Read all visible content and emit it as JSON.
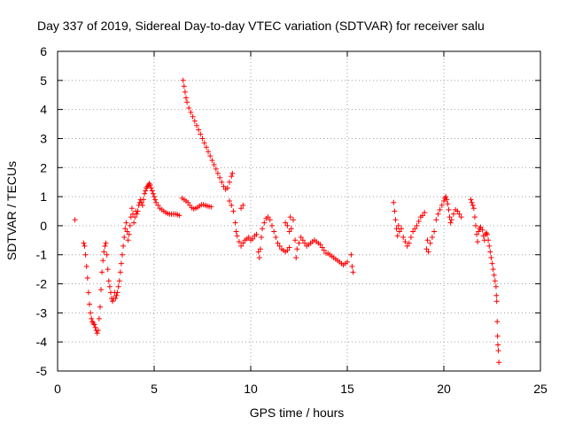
{
  "chart_data": {
    "type": "scatter",
    "title": "Day 337 of 2019, Sidereal Day-to-day VTEC variation (SDTVAR) for receiver salu",
    "xlabel": "GPS time / hours",
    "ylabel": "SDTVAR / TECUs",
    "xlim": [
      0,
      25
    ],
    "ylim": [
      -5,
      6
    ],
    "x_ticks": [
      0,
      5,
      10,
      15,
      20,
      25
    ],
    "y_ticks": [
      -5,
      -4,
      -3,
      -2,
      -1,
      0,
      1,
      2,
      3,
      4,
      5,
      6
    ],
    "x_tick_labels": [
      "0",
      "5",
      "10",
      "15",
      "20",
      "25"
    ],
    "y_tick_labels": [
      "-5",
      "-4",
      "-3",
      "-2",
      "-1",
      "0",
      "1",
      "2",
      "3",
      "4",
      "5",
      "6"
    ],
    "grid": true,
    "marker": "+",
    "marker_color": "#ff0000",
    "series": [
      {
        "name": "SDTVAR",
        "points": [
          [
            0.9,
            0.2
          ],
          [
            1.35,
            -0.6
          ],
          [
            1.4,
            -0.7
          ],
          [
            1.45,
            -1.0
          ],
          [
            1.5,
            -1.4
          ],
          [
            1.55,
            -1.8
          ],
          [
            1.6,
            -2.3
          ],
          [
            1.65,
            -2.7
          ],
          [
            1.7,
            -3.0
          ],
          [
            1.75,
            -3.2
          ],
          [
            1.8,
            -3.3
          ],
          [
            1.85,
            -3.35
          ],
          [
            1.9,
            -3.4
          ],
          [
            1.95,
            -3.5
          ],
          [
            2.0,
            -3.6
          ],
          [
            2.05,
            -3.7
          ],
          [
            2.1,
            -3.6
          ],
          [
            2.15,
            -3.2
          ],
          [
            2.2,
            -2.8
          ],
          [
            2.25,
            -2.2
          ],
          [
            2.3,
            -1.6
          ],
          [
            2.35,
            -1.2
          ],
          [
            2.4,
            -0.9
          ],
          [
            2.45,
            -0.7
          ],
          [
            2.5,
            -0.6
          ],
          [
            2.55,
            -1.0
          ],
          [
            2.6,
            -1.5
          ],
          [
            2.65,
            -1.9
          ],
          [
            2.7,
            -2.1
          ],
          [
            2.75,
            -2.3
          ],
          [
            2.8,
            -2.5
          ],
          [
            2.85,
            -2.6
          ],
          [
            2.9,
            -2.5
          ],
          [
            2.95,
            -2.3
          ],
          [
            3.0,
            -2.5
          ],
          [
            3.05,
            -2.4
          ],
          [
            3.1,
            -2.3
          ],
          [
            3.15,
            -2.1
          ],
          [
            3.2,
            -1.9
          ],
          [
            3.25,
            -1.6
          ],
          [
            3.3,
            -1.3
          ],
          [
            3.35,
            -1.0
          ],
          [
            3.4,
            -0.7
          ],
          [
            3.45,
            -0.4
          ],
          [
            3.5,
            -0.1
          ],
          [
            3.55,
            0.1
          ],
          [
            3.6,
            -0.2
          ],
          [
            3.65,
            -0.5
          ],
          [
            3.7,
            -0.3
          ],
          [
            3.75,
            0.0
          ],
          [
            3.8,
            0.3
          ],
          [
            3.85,
            0.6
          ],
          [
            3.9,
            0.4
          ],
          [
            3.95,
            0.1
          ],
          [
            4.0,
            0.3
          ],
          [
            4.05,
            0.5
          ],
          [
            4.1,
            0.4
          ],
          [
            4.15,
            0.5
          ],
          [
            4.2,
            0.7
          ],
          [
            4.25,
            0.8
          ],
          [
            4.3,
            0.9
          ],
          [
            4.35,
            0.8
          ],
          [
            4.4,
            0.7
          ],
          [
            4.45,
            0.9
          ],
          [
            4.5,
            1.1
          ],
          [
            4.55,
            1.2
          ],
          [
            4.6,
            1.3
          ],
          [
            4.65,
            1.35
          ],
          [
            4.7,
            1.4
          ],
          [
            4.75,
            1.45
          ],
          [
            4.8,
            1.4
          ],
          [
            4.85,
            1.3
          ],
          [
            4.9,
            1.2
          ],
          [
            4.95,
            1.1
          ],
          [
            5.0,
            1.0
          ],
          [
            5.05,
            0.9
          ],
          [
            5.1,
            0.8
          ],
          [
            5.2,
            0.7
          ],
          [
            5.3,
            0.6
          ],
          [
            5.4,
            0.55
          ],
          [
            5.5,
            0.5
          ],
          [
            5.6,
            0.45
          ],
          [
            5.7,
            0.42
          ],
          [
            5.8,
            0.4
          ],
          [
            5.9,
            0.4
          ],
          [
            6.0,
            0.4
          ],
          [
            6.1,
            0.4
          ],
          [
            6.2,
            0.38
          ],
          [
            6.3,
            0.35
          ],
          [
            6.45,
            0.95
          ],
          [
            6.55,
            0.9
          ],
          [
            6.65,
            0.85
          ],
          [
            6.75,
            0.8
          ],
          [
            6.85,
            0.7
          ],
          [
            6.95,
            0.62
          ],
          [
            7.05,
            0.58
          ],
          [
            7.15,
            0.6
          ],
          [
            7.25,
            0.63
          ],
          [
            7.35,
            0.68
          ],
          [
            7.45,
            0.72
          ],
          [
            7.55,
            0.72
          ],
          [
            7.65,
            0.7
          ],
          [
            7.75,
            0.68
          ],
          [
            7.85,
            0.66
          ],
          [
            7.95,
            0.65
          ],
          [
            6.5,
            5.0
          ],
          [
            6.55,
            4.8
          ],
          [
            6.6,
            4.6
          ],
          [
            6.65,
            4.4
          ],
          [
            6.7,
            4.25
          ],
          [
            6.8,
            4.05
          ],
          [
            6.9,
            3.9
          ],
          [
            7.0,
            3.75
          ],
          [
            7.1,
            3.6
          ],
          [
            7.2,
            3.45
          ],
          [
            7.3,
            3.3
          ],
          [
            7.4,
            3.15
          ],
          [
            7.5,
            3.0
          ],
          [
            7.6,
            2.85
          ],
          [
            7.7,
            2.7
          ],
          [
            7.8,
            2.55
          ],
          [
            7.9,
            2.4
          ],
          [
            8.0,
            2.25
          ],
          [
            8.1,
            2.1
          ],
          [
            8.2,
            1.95
          ],
          [
            8.3,
            1.8
          ],
          [
            8.4,
            1.65
          ],
          [
            8.5,
            1.5
          ],
          [
            8.6,
            1.35
          ],
          [
            8.7,
            1.25
          ],
          [
            8.8,
            1.3
          ],
          [
            8.9,
            1.5
          ],
          [
            9.0,
            1.7
          ],
          [
            9.05,
            1.8
          ],
          [
            8.9,
            0.85
          ],
          [
            9.0,
            0.7
          ],
          [
            9.1,
            0.5
          ],
          [
            9.2,
            0.1
          ],
          [
            9.25,
            -0.2
          ],
          [
            9.3,
            -0.35
          ],
          [
            9.4,
            -0.55
          ],
          [
            9.5,
            -0.7
          ],
          [
            9.6,
            -0.6
          ],
          [
            9.7,
            -0.5
          ],
          [
            9.8,
            -0.45
          ],
          [
            9.9,
            -0.4
          ],
          [
            10.0,
            -0.5
          ],
          [
            10.1,
            -0.45
          ],
          [
            10.2,
            -0.35
          ],
          [
            10.3,
            -0.3
          ],
          [
            9.5,
            0.6
          ],
          [
            9.6,
            0.7
          ],
          [
            10.4,
            -0.9
          ],
          [
            10.45,
            -1.1
          ],
          [
            10.5,
            -0.8
          ],
          [
            10.55,
            -0.4
          ],
          [
            10.6,
            -0.1
          ],
          [
            10.7,
            0.1
          ],
          [
            10.8,
            0.25
          ],
          [
            10.9,
            0.3
          ],
          [
            11.0,
            0.2
          ],
          [
            11.1,
            0.0
          ],
          [
            11.2,
            -0.2
          ],
          [
            11.3,
            -0.4
          ],
          [
            11.4,
            -0.6
          ],
          [
            11.5,
            -0.7
          ],
          [
            11.6,
            -0.8
          ],
          [
            11.7,
            -0.85
          ],
          [
            11.8,
            -0.9
          ],
          [
            11.9,
            -0.85
          ],
          [
            12.0,
            -0.75
          ],
          [
            11.8,
            0.1
          ],
          [
            11.9,
            0.0
          ],
          [
            12.0,
            -0.2
          ],
          [
            12.05,
            0.3
          ],
          [
            12.1,
            -0.1
          ],
          [
            12.2,
            0.2
          ],
          [
            12.3,
            -0.5
          ],
          [
            12.35,
            -1.1
          ],
          [
            12.4,
            -0.8
          ],
          [
            12.5,
            -0.6
          ],
          [
            12.6,
            -0.4
          ],
          [
            12.7,
            -0.5
          ],
          [
            12.8,
            -0.6
          ],
          [
            12.9,
            -0.7
          ],
          [
            13.0,
            -0.65
          ],
          [
            13.1,
            -0.6
          ],
          [
            13.2,
            -0.55
          ],
          [
            13.3,
            -0.5
          ],
          [
            13.4,
            -0.55
          ],
          [
            13.5,
            -0.6
          ],
          [
            13.6,
            -0.65
          ],
          [
            13.7,
            -0.75
          ],
          [
            13.8,
            -0.85
          ],
          [
            13.9,
            -0.95
          ],
          [
            14.0,
            -0.95
          ],
          [
            14.1,
            -1.0
          ],
          [
            14.2,
            -1.05
          ],
          [
            14.3,
            -1.1
          ],
          [
            14.4,
            -1.15
          ],
          [
            14.5,
            -1.2
          ],
          [
            14.6,
            -1.25
          ],
          [
            14.7,
            -1.3
          ],
          [
            14.8,
            -1.35
          ],
          [
            14.9,
            -1.3
          ],
          [
            15.0,
            -1.25
          ],
          [
            15.2,
            -1.0
          ],
          [
            15.25,
            -1.4
          ],
          [
            15.3,
            -1.6
          ],
          [
            17.4,
            0.8
          ],
          [
            17.45,
            0.5
          ],
          [
            17.5,
            0.2
          ],
          [
            17.55,
            -0.1
          ],
          [
            17.6,
            -0.35
          ],
          [
            17.65,
            0.0
          ],
          [
            17.7,
            -0.2
          ],
          [
            17.8,
            -0.1
          ],
          [
            17.9,
            -0.4
          ],
          [
            18.0,
            -0.55
          ],
          [
            18.1,
            -0.7
          ],
          [
            18.2,
            -0.6
          ],
          [
            18.3,
            -0.4
          ],
          [
            18.4,
            -0.2
          ],
          [
            18.5,
            -0.1
          ],
          [
            18.6,
            0.0
          ],
          [
            18.7,
            0.15
          ],
          [
            18.8,
            0.3
          ],
          [
            18.9,
            0.35
          ],
          [
            19.0,
            0.45
          ],
          [
            19.1,
            -0.8
          ],
          [
            19.15,
            -0.5
          ],
          [
            19.2,
            -0.9
          ],
          [
            19.3,
            -0.6
          ],
          [
            19.4,
            -0.4
          ],
          [
            19.5,
            -0.2
          ],
          [
            19.6,
            0.2
          ],
          [
            19.7,
            0.4
          ],
          [
            19.8,
            0.55
          ],
          [
            19.9,
            0.7
          ],
          [
            20.0,
            0.85
          ],
          [
            20.05,
            0.95
          ],
          [
            20.1,
            1.0
          ],
          [
            20.15,
            0.9
          ],
          [
            20.2,
            0.75
          ],
          [
            20.25,
            0.55
          ],
          [
            20.3,
            0.3
          ],
          [
            20.35,
            0.1
          ],
          [
            20.4,
            0.2
          ],
          [
            20.5,
            0.4
          ],
          [
            20.6,
            0.55
          ],
          [
            20.7,
            0.5
          ],
          [
            20.8,
            0.4
          ],
          [
            20.9,
            0.3
          ],
          [
            21.4,
            0.9
          ],
          [
            21.45,
            0.8
          ],
          [
            21.5,
            0.7
          ],
          [
            21.55,
            0.6
          ],
          [
            21.6,
            0.3
          ],
          [
            21.65,
            0.0
          ],
          [
            21.7,
            -0.3
          ],
          [
            21.75,
            -0.55
          ],
          [
            21.8,
            -0.2
          ],
          [
            21.85,
            -0.1
          ],
          [
            21.9,
            -0.05
          ],
          [
            22.0,
            -0.15
          ],
          [
            22.05,
            -0.35
          ],
          [
            22.1,
            -0.5
          ],
          [
            22.15,
            -0.3
          ],
          [
            22.2,
            -0.25
          ],
          [
            22.25,
            -0.3
          ],
          [
            22.3,
            -0.5
          ],
          [
            22.35,
            -0.7
          ],
          [
            22.4,
            -0.9
          ],
          [
            22.45,
            -1.1
          ],
          [
            22.5,
            -1.3
          ],
          [
            22.55,
            -1.5
          ],
          [
            22.6,
            -1.7
          ],
          [
            22.65,
            -1.9
          ],
          [
            22.7,
            -2.1
          ],
          [
            22.72,
            -2.4
          ],
          [
            22.74,
            -2.6
          ],
          [
            22.76,
            -3.3
          ],
          [
            22.78,
            -3.8
          ],
          [
            22.8,
            -4.1
          ],
          [
            22.82,
            -4.3
          ],
          [
            22.85,
            -4.7
          ]
        ]
      }
    ]
  }
}
